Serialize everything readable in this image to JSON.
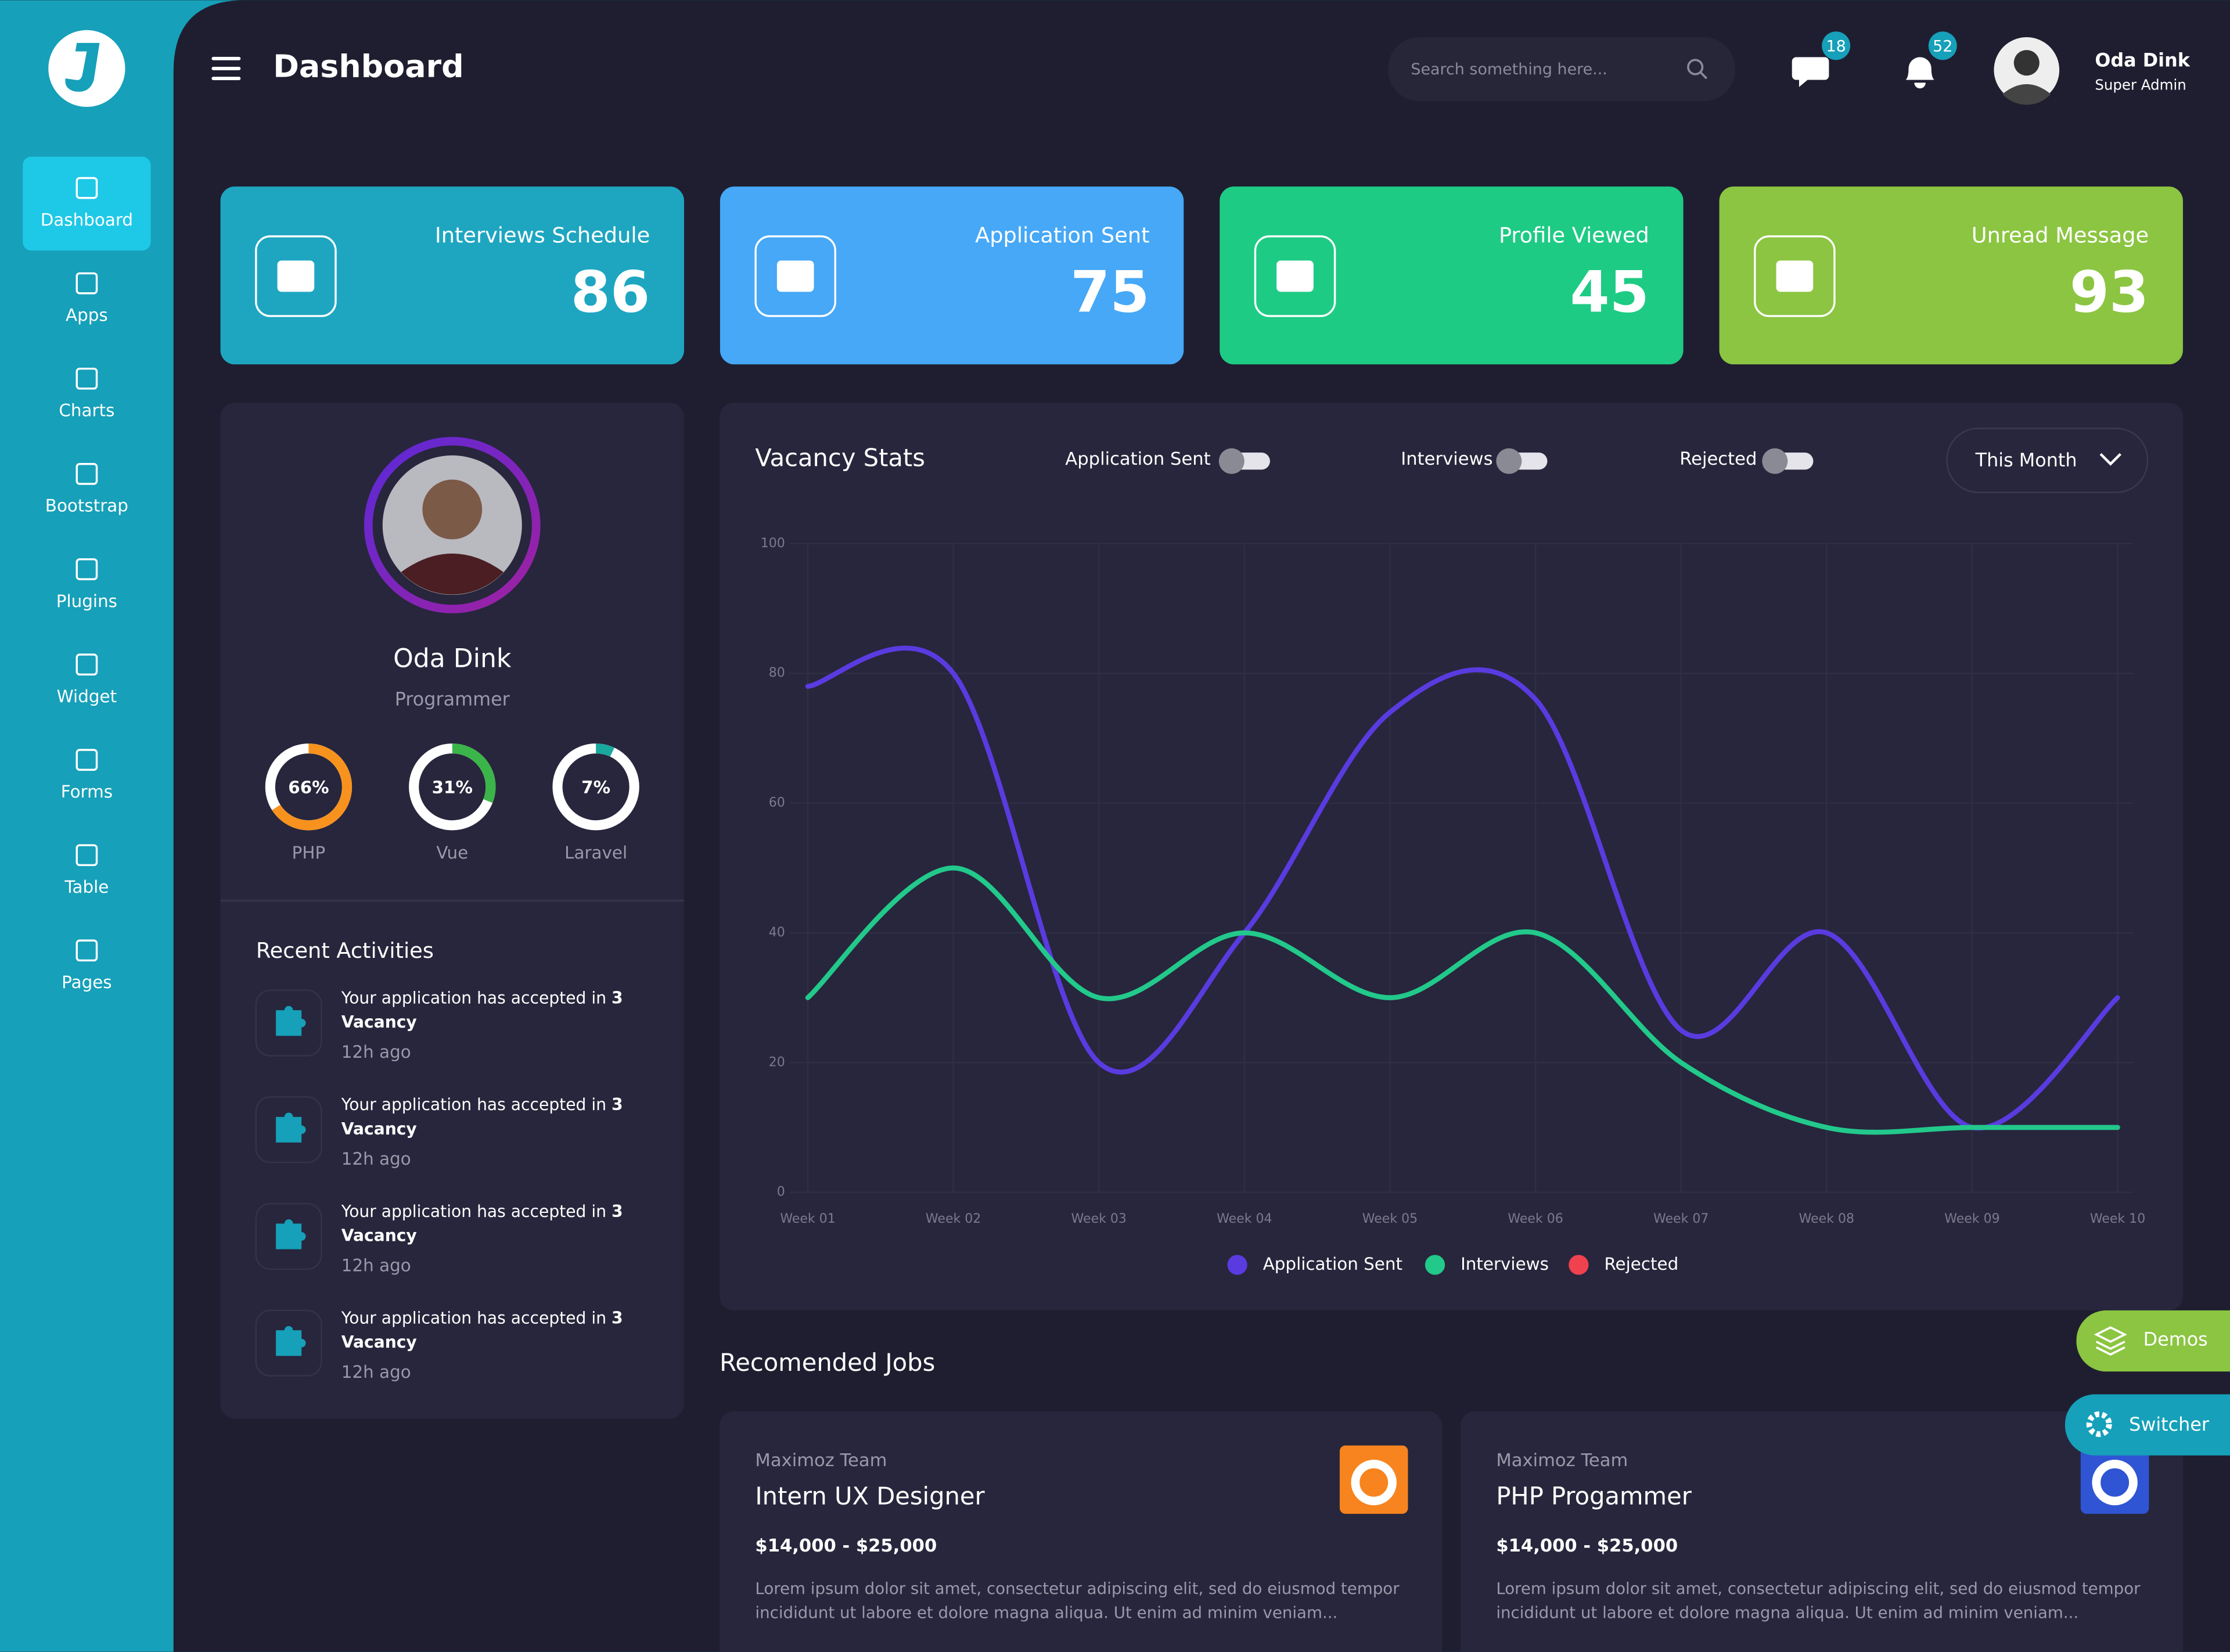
{
  "sidebar": {
    "menu": [
      "Dashboard",
      "Apps",
      "Charts",
      "Bootstrap",
      "Plugins",
      "Widget",
      "Forms",
      "Table",
      "Pages"
    ]
  },
  "header": {
    "title": "Dashboard",
    "search_placeholder": "Search something here...",
    "messages_badge": "18",
    "notifications_badge": "52",
    "user_name": "Oda Dink",
    "user_role": "Super Admin"
  },
  "stat_cards": [
    {
      "label": "Interviews Schedule",
      "value": "86"
    },
    {
      "label": "Application Sent",
      "value": "75"
    },
    {
      "label": "Profile Viewed",
      "value": "45"
    },
    {
      "label": "Unread Message",
      "value": "93"
    }
  ],
  "profile": {
    "name": "Oda Dink",
    "role": "Programmer",
    "skills": [
      {
        "name": "PHP",
        "value": 66,
        "label": "66%"
      },
      {
        "name": "Vue",
        "value": 31,
        "label": "31%"
      },
      {
        "name": "Laravel",
        "value": 7,
        "label": "7%"
      }
    ]
  },
  "recent_activities": {
    "title": "Recent Activities",
    "items": [
      {
        "text": "Your application has accepted in",
        "count": "3",
        "word": "Vacancy",
        "time": "12h ago"
      },
      {
        "text": "Your application has accepted in",
        "count": "3",
        "word": "Vacancy",
        "time": "12h ago"
      },
      {
        "text": "Your application has accepted in",
        "count": "3",
        "word": "Vacancy",
        "time": "12h ago"
      },
      {
        "text": "Your application has accepted in",
        "count": "3",
        "word": "Vacancy",
        "time": "12h ago"
      }
    ]
  },
  "chart_data": {
    "type": "line",
    "title": "Vacancy Stats",
    "toggles": [
      "Application Sent",
      "Interviews",
      "Rejected"
    ],
    "period": "This Month",
    "categories": [
      "Week 01",
      "Week 02",
      "Week 03",
      "Week 04",
      "Week 05",
      "Week 06",
      "Week 07",
      "Week 08",
      "Week 09",
      "Week 10"
    ],
    "series": [
      {
        "name": "Application Sent",
        "color": "#5a3be0",
        "values": [
          78,
          80,
          20,
          40,
          74,
          76,
          25,
          40,
          10,
          30
        ]
      },
      {
        "name": "Interviews",
        "color": "#22c98b",
        "values": [
          30,
          50,
          30,
          40,
          30,
          40,
          20,
          10,
          10,
          10
        ]
      },
      {
        "name": "Rejected",
        "color": "#f0414f",
        "values": [
          null,
          null,
          null,
          null,
          null,
          null,
          null,
          null,
          null,
          null
        ]
      }
    ],
    "ylim": [
      0,
      100
    ],
    "yticks": [
      0,
      20,
      40,
      60,
      80,
      100
    ],
    "grid": true
  },
  "recommended_jobs": {
    "title": "Recomended Jobs",
    "jobs": [
      {
        "company": "Maximoz Team",
        "title": "Intern UX Designer",
        "salary": "$14,000 - $25,000",
        "lines": [
          "Lorem ipsum dolor sit amet, consectetur adipiscing elit, sed do eiusmod tempor",
          "incididunt ut labore et dolore magna aliqua. Ut enim ad minim veniam..."
        ]
      },
      {
        "company": "Maximoz Team",
        "title": "PHP Progammer",
        "salary": "$14,000 - $25,000",
        "lines": [
          "Lorem ipsum dolor sit amet, consectetur adipiscing elit, sed do eiusmod tempor",
          "incididunt ut labore et dolore magna aliqua. Ut enim ad minim veniam..."
        ]
      }
    ]
  },
  "floating": {
    "demos": "Demos",
    "switcher": "Switcher"
  }
}
